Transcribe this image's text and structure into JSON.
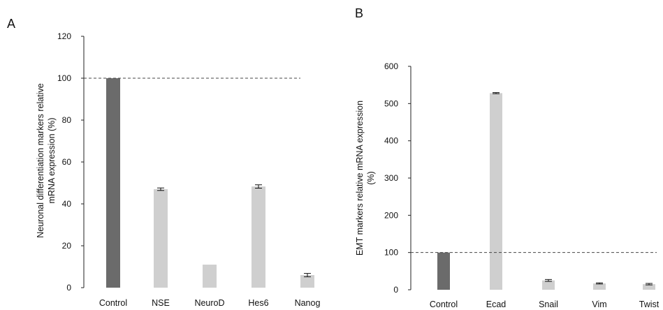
{
  "chart_data": [
    {
      "panel": "A",
      "type": "bar",
      "ylabel": [
        "Neuronal differentiation markers relative",
        "mRNA expression (%)"
      ],
      "categories": [
        "Control",
        "NSE",
        "NeuroD",
        "Hes6",
        "Nanog"
      ],
      "values": [
        100,
        47,
        11,
        48.3,
        6
      ],
      "errors": [
        0,
        0.6,
        0,
        0.8,
        0.8
      ],
      "colors": [
        "#6b6b6b",
        "#cfcfcf",
        "#cfcfcf",
        "#cfcfcf",
        "#cfcfcf"
      ],
      "ylim": [
        0,
        120
      ],
      "yticks": [
        0,
        20,
        40,
        60,
        80,
        100,
        120
      ],
      "reference_line": 100,
      "grid": false
    },
    {
      "panel": "B",
      "type": "bar",
      "ylabel": [
        "EMT markers relative mRNA expression",
        "(%)"
      ],
      "categories": [
        "Control",
        "Ecad",
        "Snail",
        "Vim",
        "Twist"
      ],
      "values": [
        100,
        528,
        25,
        17,
        15
      ],
      "errors": [
        0,
        1.5,
        2.5,
        1.5,
        2
      ],
      "colors": [
        "#6b6b6b",
        "#cfcfcf",
        "#cfcfcf",
        "#cfcfcf",
        "#cfcfcf"
      ],
      "ylim": [
        0,
        600
      ],
      "yticks": [
        0,
        100,
        200,
        300,
        400,
        500,
        600
      ],
      "reference_line": 100,
      "grid": false
    }
  ]
}
